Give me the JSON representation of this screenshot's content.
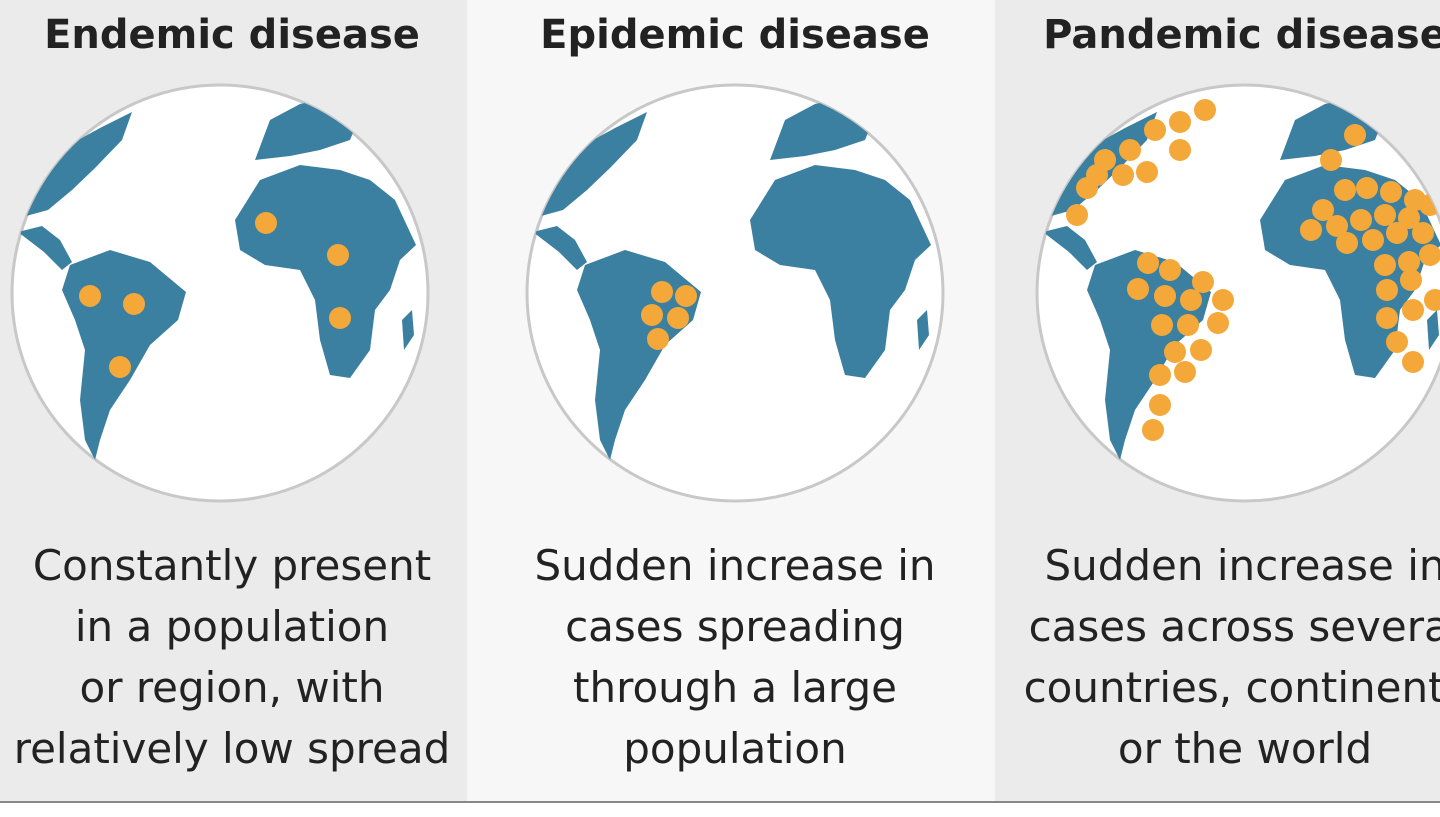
{
  "panels": [
    {
      "title": "Endemic disease",
      "description": [
        "Constantly present",
        "in a population",
        "or region, with",
        "relatively low spread"
      ]
    },
    {
      "title": "Epidemic disease",
      "description": [
        "Sudden increase in",
        "cases spreading",
        "through a large",
        "population"
      ]
    },
    {
      "title": "Pandemic disease",
      "description": [
        "Sudden increase in",
        "cases across several",
        "countries, continents",
        "or the world"
      ]
    }
  ]
}
